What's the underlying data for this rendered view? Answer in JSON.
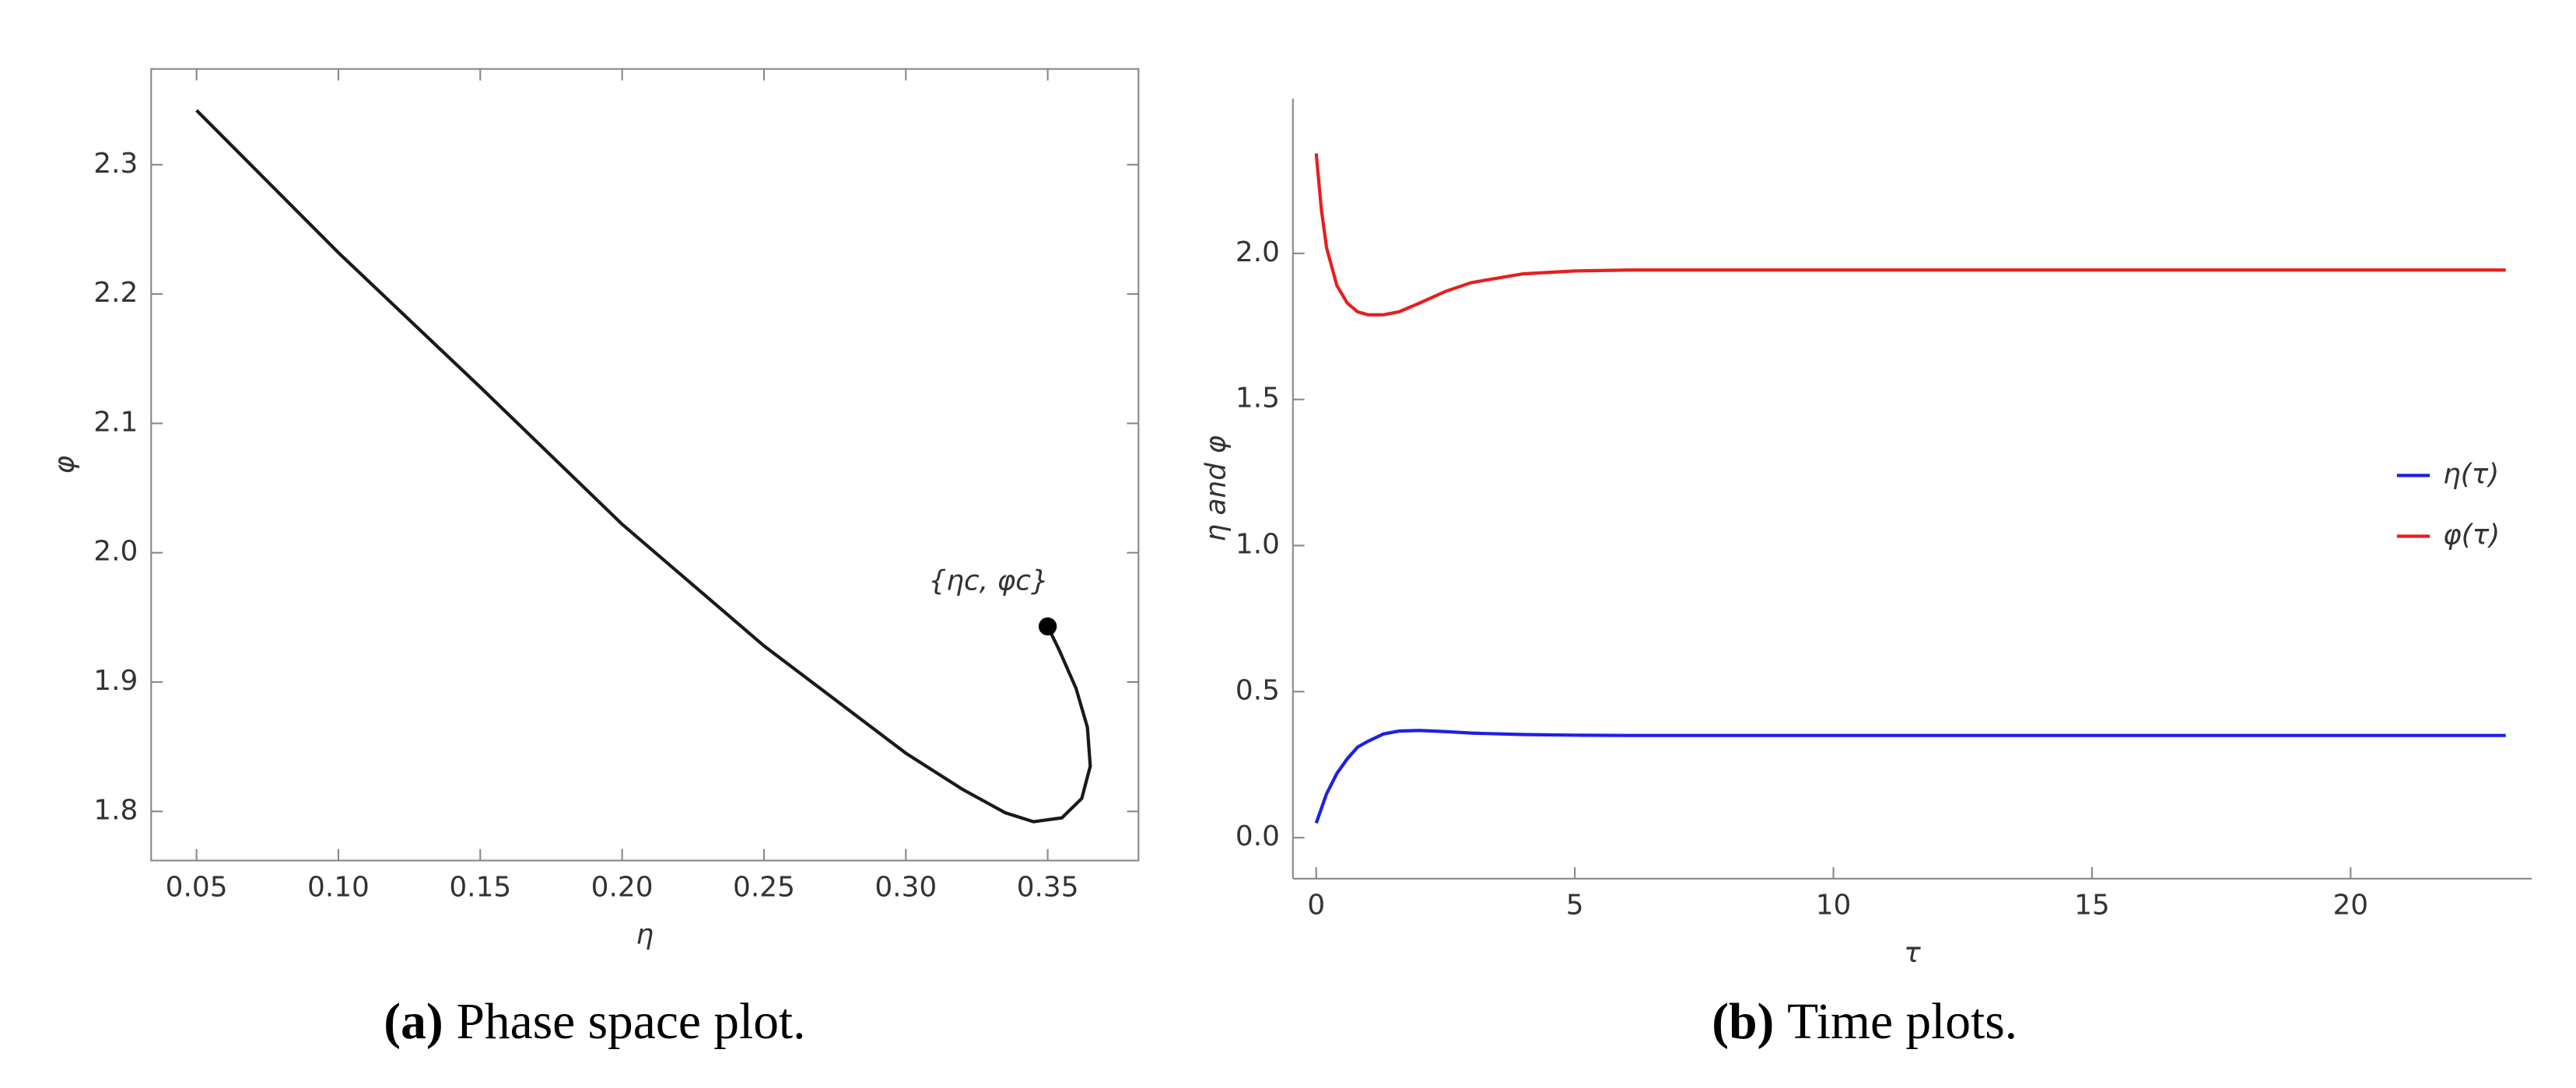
{
  "chart_data": [
    {
      "type": "line",
      "frame": "full",
      "xlabel": "η",
      "ylabel": "φ",
      "xlim": [
        0.034,
        0.382
      ],
      "ylim": [
        1.762,
        2.374
      ],
      "xticks": [
        0.05,
        {
          "value": 0.1,
          "label": "0.10"
        },
        0.15,
        {
          "value": 0.2,
          "label": "0.20"
        },
        0.25,
        {
          "value": 0.3,
          "label": "0.30"
        },
        0.35
      ],
      "yticks": [
        1.8,
        1.9,
        {
          "value": 2,
          "label": "2.0"
        },
        2.1,
        2.2,
        2.3
      ],
      "x": [
        0.05,
        0.1,
        0.15,
        0.2,
        0.25,
        0.3,
        0.32,
        0.335,
        0.345,
        0.355,
        0.362,
        0.365,
        0.364,
        0.36,
        0.354,
        0.35
      ],
      "series": [
        {
          "color": "#1a1a1a",
          "values": [
            2.342,
            2.232,
            2.128,
            2.022,
            1.928,
            1.845,
            1.817,
            1.799,
            1.792,
            1.795,
            1.81,
            1.835,
            1.865,
            1.895,
            1.925,
            1.943
          ]
        }
      ],
      "marker": {
        "x": 0.35,
        "y": 1.943,
        "label": "{ηc, φc}"
      },
      "caption": {
        "label": "(a)",
        "text": "Phase space plot."
      }
    },
    {
      "type": "line",
      "frame": "axes",
      "xlabel": "τ",
      "ylabel": "η and φ",
      "legend": "right",
      "xlim": [
        -0.45,
        23.5
      ],
      "ylim": [
        -0.14,
        2.53
      ],
      "xticks": [
        0,
        5,
        10,
        15,
        20
      ],
      "yticks": [
        {
          "value": 0,
          "label": "0.0"
        },
        0.5,
        {
          "value": 1,
          "label": "1.0"
        },
        1.5,
        {
          "value": 2,
          "label": "2.0"
        }
      ],
      "x": [
        0,
        0.1,
        0.2,
        0.4,
        0.6,
        0.8,
        1,
        1.3,
        1.6,
        2,
        2.5,
        3,
        4,
        5,
        6,
        8,
        10,
        15,
        20,
        23
      ],
      "series": [
        {
          "name": "η(τ)",
          "color": "#1f1fe6",
          "values": [
            0.05,
            0.1,
            0.15,
            0.22,
            0.27,
            0.31,
            0.33,
            0.355,
            0.365,
            0.367,
            0.363,
            0.358,
            0.353,
            0.351,
            0.35,
            0.35,
            0.35,
            0.35,
            0.35,
            0.35
          ]
        },
        {
          "name": "φ(τ)",
          "color": "#e61f1f",
          "values": [
            2.342,
            2.15,
            2.02,
            1.89,
            1.83,
            1.8,
            1.79,
            1.79,
            1.8,
            1.83,
            1.87,
            1.9,
            1.93,
            1.94,
            1.943,
            1.943,
            1.943,
            1.943,
            1.943,
            1.943
          ]
        }
      ],
      "caption": {
        "label": "(b)",
        "text": "Time plots."
      }
    }
  ]
}
